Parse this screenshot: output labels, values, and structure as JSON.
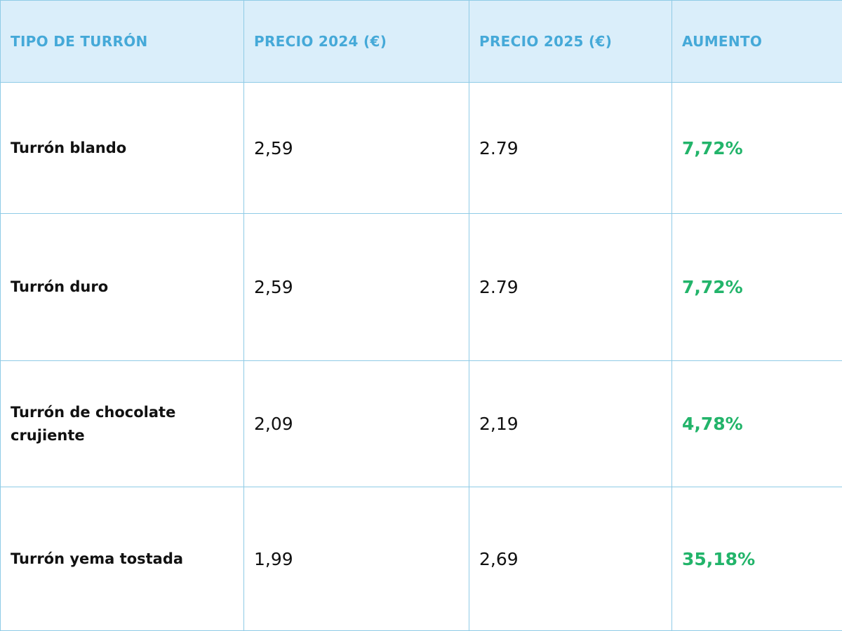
{
  "table": {
    "header": [
      "TIPO DE TURRÓN",
      "PRECIO 2024 (€)",
      "PRECIO 2025 (€)",
      "AUMENTO"
    ],
    "rows": [
      [
        "Turrón blando",
        "2,59",
        "2.79",
        "7,72%"
      ],
      [
        "Turrón duro",
        "2,59",
        "2.79",
        "7,72%"
      ],
      [
        "Turrón de chocolate crujiente",
        "2,09",
        "2,19",
        "4,78%"
      ],
      [
        "Turrón yema tostada",
        "1,99",
        "2,69",
        "35,18%"
      ]
    ]
  }
}
